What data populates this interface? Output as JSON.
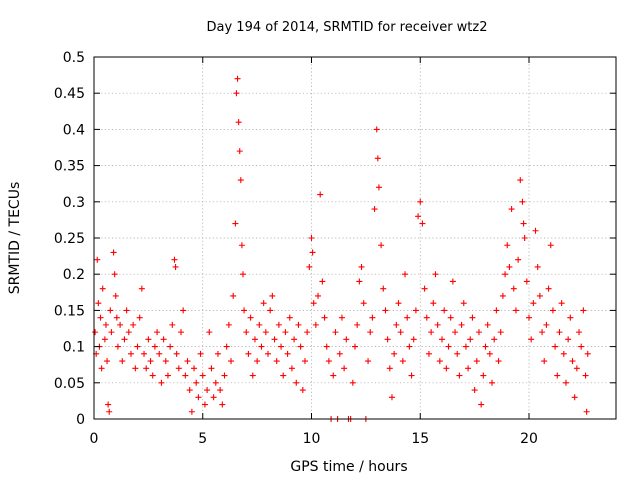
{
  "chart_data": {
    "type": "scatter",
    "title": "Day 194 of 2014, SRMTID for receiver wtz2",
    "xlabel": "GPS time / hours",
    "ylabel": "SRMTID / TECUs",
    "xlim": [
      0,
      24
    ],
    "ylim": [
      0,
      0.5
    ],
    "xticks": [
      0,
      5,
      10,
      15,
      20
    ],
    "yticks": [
      0,
      0.05,
      0.1,
      0.15,
      0.2,
      0.25,
      0.3,
      0.35,
      0.4,
      0.45,
      0.5
    ],
    "grid": true,
    "legend": "none",
    "marker": "+",
    "color": "#ff0000",
    "series": [
      {
        "name": "wtz2",
        "points": [
          [
            0.05,
            0.12
          ],
          [
            0.1,
            0.09
          ],
          [
            0.15,
            0.22
          ],
          [
            0.2,
            0.16
          ],
          [
            0.25,
            0.1
          ],
          [
            0.3,
            0.14
          ],
          [
            0.35,
            0.07
          ],
          [
            0.4,
            0.18
          ],
          [
            0.5,
            0.11
          ],
          [
            0.55,
            0.13
          ],
          [
            0.6,
            0.08
          ],
          [
            0.65,
            0.02
          ],
          [
            0.7,
            0.01
          ],
          [
            0.75,
            0.15
          ],
          [
            0.8,
            0.12
          ],
          [
            0.9,
            0.23
          ],
          [
            0.95,
            0.2
          ],
          [
            1.0,
            0.17
          ],
          [
            1.05,
            0.14
          ],
          [
            1.1,
            0.1
          ],
          [
            1.2,
            0.13
          ],
          [
            1.3,
            0.08
          ],
          [
            1.4,
            0.11
          ],
          [
            1.5,
            0.15
          ],
          [
            1.6,
            0.12
          ],
          [
            1.7,
            0.09
          ],
          [
            1.8,
            0.13
          ],
          [
            1.9,
            0.07
          ],
          [
            2.0,
            0.1
          ],
          [
            2.1,
            0.14
          ],
          [
            2.2,
            0.18
          ],
          [
            2.3,
            0.09
          ],
          [
            2.4,
            0.07
          ],
          [
            2.5,
            0.11
          ],
          [
            2.6,
            0.08
          ],
          [
            2.7,
            0.06
          ],
          [
            2.8,
            0.1
          ],
          [
            2.9,
            0.12
          ],
          [
            3.0,
            0.09
          ],
          [
            3.1,
            0.05
          ],
          [
            3.2,
            0.11
          ],
          [
            3.3,
            0.08
          ],
          [
            3.4,
            0.06
          ],
          [
            3.5,
            0.1
          ],
          [
            3.6,
            0.13
          ],
          [
            3.7,
            0.22
          ],
          [
            3.75,
            0.21
          ],
          [
            3.8,
            0.09
          ],
          [
            3.9,
            0.07
          ],
          [
            4.0,
            0.12
          ],
          [
            4.1,
            0.15
          ],
          [
            4.2,
            0.06
          ],
          [
            4.3,
            0.08
          ],
          [
            4.4,
            0.04
          ],
          [
            4.5,
            0.01
          ],
          [
            4.6,
            0.07
          ],
          [
            4.7,
            0.05
          ],
          [
            4.8,
            0.03
          ],
          [
            4.9,
            0.09
          ],
          [
            5.0,
            0.06
          ],
          [
            5.1,
            0.02
          ],
          [
            5.2,
            0.04
          ],
          [
            5.3,
            0.12
          ],
          [
            5.4,
            0.07
          ],
          [
            5.5,
            0.03
          ],
          [
            5.6,
            0.05
          ],
          [
            5.7,
            0.09
          ],
          [
            5.8,
            0.04
          ],
          [
            5.9,
            0.02
          ],
          [
            6.0,
            0.06
          ],
          [
            6.1,
            0.1
          ],
          [
            6.2,
            0.13
          ],
          [
            6.3,
            0.08
          ],
          [
            6.4,
            0.17
          ],
          [
            6.5,
            0.27
          ],
          [
            6.55,
            0.45
          ],
          [
            6.6,
            0.47
          ],
          [
            6.65,
            0.41
          ],
          [
            6.7,
            0.37
          ],
          [
            6.75,
            0.33
          ],
          [
            6.8,
            0.24
          ],
          [
            6.85,
            0.2
          ],
          [
            6.9,
            0.15
          ],
          [
            7.0,
            0.12
          ],
          [
            7.1,
            0.09
          ],
          [
            7.2,
            0.14
          ],
          [
            7.3,
            0.06
          ],
          [
            7.4,
            0.11
          ],
          [
            7.5,
            0.08
          ],
          [
            7.6,
            0.13
          ],
          [
            7.7,
            0.1
          ],
          [
            7.8,
            0.16
          ],
          [
            7.9,
            0.12
          ],
          [
            8.0,
            0.09
          ],
          [
            8.1,
            0.15
          ],
          [
            8.2,
            0.17
          ],
          [
            8.3,
            0.11
          ],
          [
            8.4,
            0.08
          ],
          [
            8.5,
            0.13
          ],
          [
            8.6,
            0.1
          ],
          [
            8.7,
            0.06
          ],
          [
            8.8,
            0.12
          ],
          [
            8.9,
            0.09
          ],
          [
            9.0,
            0.14
          ],
          [
            9.1,
            0.07
          ],
          [
            9.2,
            0.11
          ],
          [
            9.3,
            0.05
          ],
          [
            9.4,
            0.13
          ],
          [
            9.5,
            0.1
          ],
          [
            9.6,
            0.04
          ],
          [
            9.7,
            0.08
          ],
          [
            9.8,
            0.12
          ],
          [
            9.9,
            0.21
          ],
          [
            10.0,
            0.25
          ],
          [
            10.05,
            0.23
          ],
          [
            10.1,
            0.16
          ],
          [
            10.2,
            0.13
          ],
          [
            10.3,
            0.17
          ],
          [
            10.4,
            0.31
          ],
          [
            10.5,
            0.19
          ],
          [
            10.6,
            0.14
          ],
          [
            10.7,
            0.1
          ],
          [
            10.8,
            0.08
          ],
          [
            10.9,
            0.0
          ],
          [
            11.0,
            0.06
          ],
          [
            11.1,
            0.12
          ],
          [
            11.2,
            0.0
          ],
          [
            11.3,
            0.09
          ],
          [
            11.4,
            0.14
          ],
          [
            11.5,
            0.07
          ],
          [
            11.6,
            0.11
          ],
          [
            11.7,
            0.0
          ],
          [
            11.8,
            0.0
          ],
          [
            11.9,
            0.05
          ],
          [
            12.0,
            0.1
          ],
          [
            12.1,
            0.13
          ],
          [
            12.2,
            0.19
          ],
          [
            12.3,
            0.21
          ],
          [
            12.4,
            0.16
          ],
          [
            12.5,
            0.0
          ],
          [
            12.6,
            0.08
          ],
          [
            12.7,
            0.12
          ],
          [
            12.8,
            0.14
          ],
          [
            12.9,
            0.29
          ],
          [
            13.0,
            0.4
          ],
          [
            13.05,
            0.36
          ],
          [
            13.1,
            0.32
          ],
          [
            13.2,
            0.24
          ],
          [
            13.3,
            0.18
          ],
          [
            13.4,
            0.15
          ],
          [
            13.5,
            0.11
          ],
          [
            13.6,
            0.07
          ],
          [
            13.7,
            0.03
          ],
          [
            13.8,
            0.09
          ],
          [
            13.9,
            0.13
          ],
          [
            14.0,
            0.16
          ],
          [
            14.1,
            0.12
          ],
          [
            14.2,
            0.08
          ],
          [
            14.3,
            0.2
          ],
          [
            14.4,
            0.14
          ],
          [
            14.5,
            0.1
          ],
          [
            14.6,
            0.06
          ],
          [
            14.7,
            0.11
          ],
          [
            14.8,
            0.15
          ],
          [
            14.9,
            0.28
          ],
          [
            15.0,
            0.3
          ],
          [
            15.1,
            0.27
          ],
          [
            15.2,
            0.18
          ],
          [
            15.3,
            0.14
          ],
          [
            15.4,
            0.09
          ],
          [
            15.5,
            0.12
          ],
          [
            15.6,
            0.16
          ],
          [
            15.7,
            0.2
          ],
          [
            15.8,
            0.13
          ],
          [
            15.9,
            0.08
          ],
          [
            16.0,
            0.11
          ],
          [
            16.1,
            0.15
          ],
          [
            16.2,
            0.07
          ],
          [
            16.3,
            0.1
          ],
          [
            16.4,
            0.14
          ],
          [
            16.5,
            0.19
          ],
          [
            16.6,
            0.12
          ],
          [
            16.7,
            0.09
          ],
          [
            16.8,
            0.06
          ],
          [
            16.9,
            0.13
          ],
          [
            17.0,
            0.16
          ],
          [
            17.1,
            0.1
          ],
          [
            17.2,
            0.07
          ],
          [
            17.3,
            0.11
          ],
          [
            17.4,
            0.14
          ],
          [
            17.5,
            0.04
          ],
          [
            17.6,
            0.08
          ],
          [
            17.7,
            0.12
          ],
          [
            17.8,
            0.02
          ],
          [
            17.9,
            0.06
          ],
          [
            18.0,
            0.1
          ],
          [
            18.1,
            0.13
          ],
          [
            18.2,
            0.09
          ],
          [
            18.3,
            0.05
          ],
          [
            18.4,
            0.11
          ],
          [
            18.5,
            0.15
          ],
          [
            18.6,
            0.08
          ],
          [
            18.7,
            0.12
          ],
          [
            18.8,
            0.17
          ],
          [
            18.9,
            0.2
          ],
          [
            19.0,
            0.24
          ],
          [
            19.1,
            0.21
          ],
          [
            19.2,
            0.29
          ],
          [
            19.3,
            0.18
          ],
          [
            19.4,
            0.15
          ],
          [
            19.5,
            0.22
          ],
          [
            19.6,
            0.33
          ],
          [
            19.7,
            0.3
          ],
          [
            19.75,
            0.27
          ],
          [
            19.8,
            0.25
          ],
          [
            19.9,
            0.19
          ],
          [
            20.0,
            0.14
          ],
          [
            20.1,
            0.11
          ],
          [
            20.2,
            0.16
          ],
          [
            20.3,
            0.26
          ],
          [
            20.4,
            0.21
          ],
          [
            20.5,
            0.17
          ],
          [
            20.6,
            0.12
          ],
          [
            20.7,
            0.08
          ],
          [
            20.8,
            0.13
          ],
          [
            20.9,
            0.18
          ],
          [
            21.0,
            0.24
          ],
          [
            21.1,
            0.15
          ],
          [
            21.2,
            0.1
          ],
          [
            21.3,
            0.06
          ],
          [
            21.4,
            0.12
          ],
          [
            21.5,
            0.16
          ],
          [
            21.6,
            0.09
          ],
          [
            21.7,
            0.05
          ],
          [
            21.8,
            0.11
          ],
          [
            21.9,
            0.14
          ],
          [
            22.0,
            0.08
          ],
          [
            22.1,
            0.03
          ],
          [
            22.2,
            0.07
          ],
          [
            22.3,
            0.12
          ],
          [
            22.4,
            0.1
          ],
          [
            22.5,
            0.15
          ],
          [
            22.6,
            0.06
          ],
          [
            22.65,
            0.01
          ],
          [
            22.7,
            0.09
          ]
        ]
      }
    ]
  }
}
